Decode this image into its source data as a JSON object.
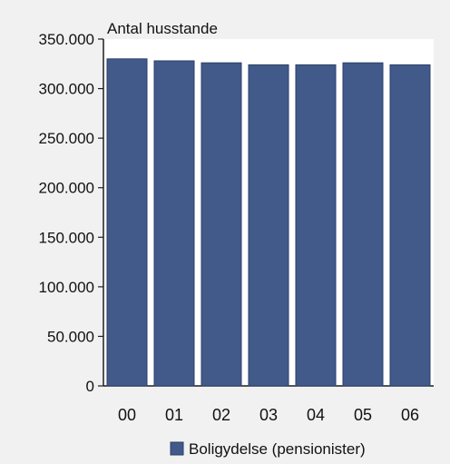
{
  "chart_data": {
    "type": "bar",
    "ylabel": "Antal husstande",
    "categories": [
      "00",
      "01",
      "02",
      "03",
      "04",
      "05",
      "06"
    ],
    "series": [
      {
        "name": "Boligydelse (pensionister)",
        "values": [
          330000,
          328000,
          326000,
          324000,
          324000,
          326000,
          324000
        ],
        "color": "#425a8a"
      }
    ],
    "ylim": [
      0,
      350000
    ],
    "y_ticks": [
      0,
      50000,
      100000,
      150000,
      200000,
      250000,
      300000,
      350000
    ],
    "y_tick_labels": [
      "0",
      "50.000",
      "100.000",
      "150.000",
      "200.000",
      "250.000",
      "300.000",
      "350.000"
    ],
    "grid": false,
    "legend": "bottom",
    "plot_background": "#ffffff",
    "panel_background": "#f1f1f1",
    "bar_edge_color": "#2a3f68"
  }
}
